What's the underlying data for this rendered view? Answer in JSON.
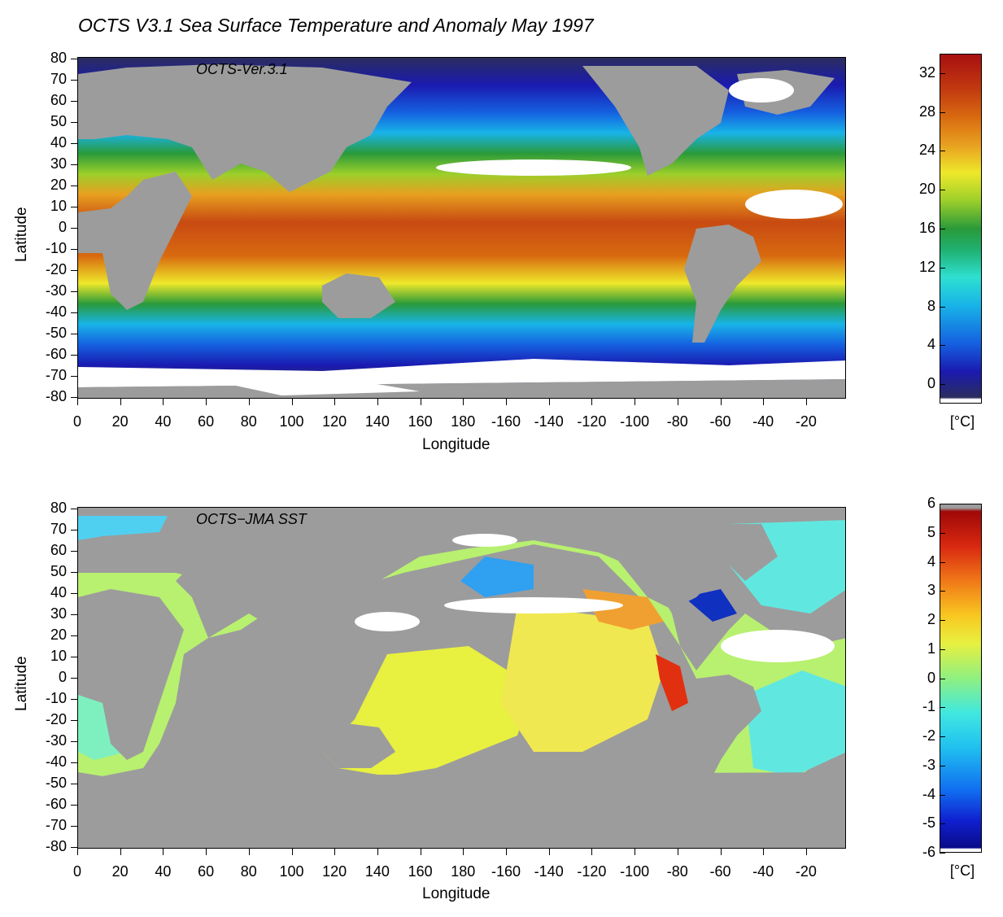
{
  "title": "OCTS V3.1 Sea Surface Temperature  and Anomaly May 1997",
  "colors": {
    "land": "#9c9c9c",
    "missing": "#ffffff"
  },
  "top_panel": {
    "label": "OCTS-Ver.3.1",
    "y_axis": {
      "title": "Latitude",
      "ticks": [
        "80",
        "70",
        "60",
        "50",
        "40",
        "30",
        "20",
        "10",
        "0",
        "-10",
        "-20",
        "-30",
        "-40",
        "-50",
        "-60",
        "-70",
        "-80"
      ]
    },
    "x_axis": {
      "title": "Longitude",
      "ticks": [
        "0",
        "20",
        "40",
        "60",
        "80",
        "100",
        "120",
        "140",
        "160",
        "180",
        "-160",
        "-140",
        "-120",
        "-100",
        "-80",
        "-60",
        "-40",
        "-20"
      ]
    },
    "colorbar": {
      "ticks": [
        "32",
        "28",
        "24",
        "20",
        "16",
        "12",
        "8",
        "4",
        "0"
      ],
      "range": [
        -2,
        34
      ],
      "unit": "[°C]",
      "stops": [
        "#2b2d5e",
        "#1a1ab0",
        "#1560e0",
        "#18b4e8",
        "#2ee0d0",
        "#20b070",
        "#2a9a3a",
        "#9ccf2a",
        "#eee82a",
        "#e8a020",
        "#d86a10",
        "#c23a10",
        "#a81010"
      ]
    }
  },
  "bottom_panel": {
    "label": "OCTS−JMA SST",
    "y_axis": {
      "title": "Latitude",
      "ticks": [
        "80",
        "70",
        "60",
        "50",
        "40",
        "30",
        "20",
        "10",
        "0",
        "-10",
        "-20",
        "-30",
        "-40",
        "-50",
        "-60",
        "-70",
        "-80"
      ]
    },
    "x_axis": {
      "title": "Longitude",
      "ticks": [
        "0",
        "20",
        "40",
        "60",
        "80",
        "100",
        "120",
        "140",
        "160",
        "180",
        "-160",
        "-140",
        "-120",
        "-100",
        "-80",
        "-60",
        "-40",
        "-20"
      ]
    },
    "colorbar": {
      "ticks": [
        "6",
        "5",
        "4",
        "3",
        "2",
        "1",
        "0",
        "-1",
        "-2",
        "-3",
        "-4",
        "-5",
        "-6"
      ],
      "range": [
        -6,
        6
      ],
      "unit": "[°C]",
      "stops": [
        "#0a0a8a",
        "#1020d0",
        "#1070f0",
        "#20c0f0",
        "#40e8e0",
        "#90f080",
        "#e8f040",
        "#f8c820",
        "#f07818",
        "#d82810",
        "#a00808"
      ]
    }
  }
}
